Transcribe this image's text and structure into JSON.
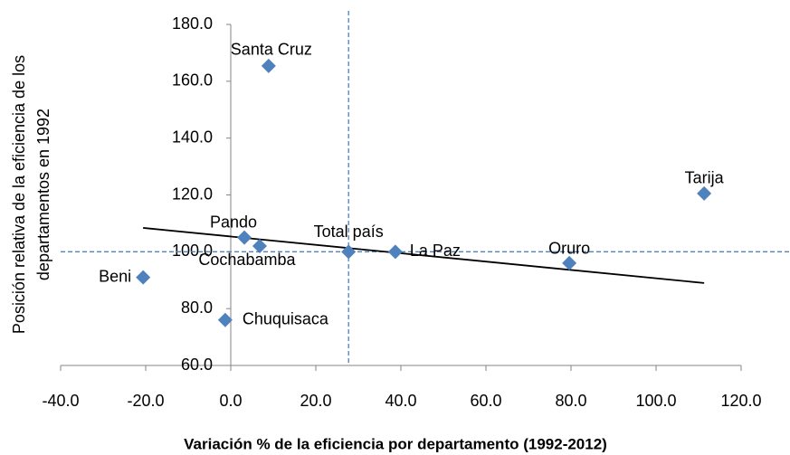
{
  "chart_data": {
    "type": "scatter",
    "x_label": "Variación % de la eficiencia  por departamento (1992-2012)",
    "y_label": [
      "Posición relativa de la eficiencia de los",
      "departamentos en 1992"
    ],
    "series": [
      {
        "color": "#4f81bd",
        "labels": [
          "Santa Cruz",
          "Tarija",
          "Pando",
          "Cochabamba",
          "Total país",
          "La Paz",
          "Oruro",
          "Beni",
          "Chuquisaca"
        ],
        "x": [
          8.9,
          111.3,
          3.2,
          6.8,
          27.7,
          38.7,
          79.6,
          -20.6,
          -1.3
        ],
        "values": [
          165.4,
          120.5,
          105,
          102,
          100,
          100,
          96,
          91,
          76
        ]
      }
    ],
    "trendline": {
      "color": "#000000",
      "x": [
        -20.6,
        111.3
      ],
      "values": [
        108.4,
        89.0
      ]
    },
    "reference_lines": {
      "color": "#4f81bd",
      "x": 27.7,
      "y": 100
    },
    "xlim": [
      -40,
      120
    ],
    "xticks": [
      {
        "value": -40,
        "label": "-40.0"
      },
      {
        "value": -20,
        "label": "-20.0"
      },
      {
        "value": 0,
        "label": "0.0"
      },
      {
        "value": 20,
        "label": "20.0"
      },
      {
        "value": 40,
        "label": "40.0"
      },
      {
        "value": 60,
        "label": "60.0"
      },
      {
        "value": 80,
        "label": "80.0"
      },
      {
        "value": 100,
        "label": "100.0"
      },
      {
        "value": 120,
        "label": "120.0"
      }
    ],
    "ylim": [
      60,
      180
    ],
    "yticks": [
      {
        "value": 60,
        "label": "60.0"
      },
      {
        "value": 80,
        "label": "80.0"
      },
      {
        "value": 100,
        "label": "100.0"
      },
      {
        "value": 120,
        "label": "120.0"
      },
      {
        "value": 140,
        "label": "140.0"
      },
      {
        "value": 160,
        "label": "160.0"
      },
      {
        "value": 180,
        "label": "180.0"
      }
    ]
  }
}
